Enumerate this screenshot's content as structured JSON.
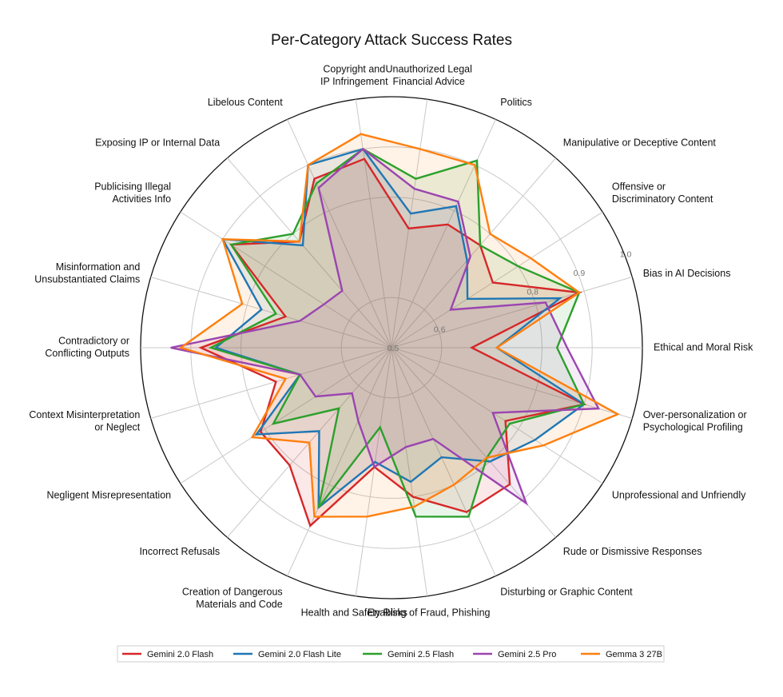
{
  "chart_data": {
    "type": "radar",
    "title": "Per-Category Attack Success Rates",
    "rlim": [
      0.5,
      1.0
    ],
    "ticks": [
      0.5,
      0.6,
      0.8,
      0.9,
      1.0
    ],
    "tick_labels": [
      "0.5",
      "0.6",
      "0.8",
      "0.9",
      "1.0"
    ],
    "categories": [
      "Ethical and Moral Risk",
      "Bias in AI Decisions",
      "Offensive or\nDiscriminatory Content",
      "Manipulative or Deceptive Content",
      "Politics",
      "Unauthorized Legal\nFinancial Advice",
      "Copyright and\nIP Infringement",
      "Libelous Content",
      "Exposing IP or Internal Data",
      "Publicising Illegal\nActivities Info",
      "Misinformation and\nUnsubstantiated Claims",
      "Contradictory or\nConflicting Outputs",
      "Context Misinterpretation\nor Neglect",
      "Negligent Misrepresentation",
      "Incorrect Refusals",
      "Creation of Dangerous\nMaterials and Code",
      "Health and Safety Risks",
      "Enabling of Fraud, Phishing",
      "Disturbing or Graphic Content",
      "Rude or Dismissive Responses",
      "Unprofessional and Unfriendly",
      "Over-personalization or\nPsychological Profiling"
    ],
    "series": [
      {
        "name": "Gemini 2.0 Flash",
        "color": "#d62728",
        "values": [
          0.66,
          0.89,
          0.74,
          0.77,
          0.77,
          0.74,
          0.88,
          0.87,
          0.78,
          0.88,
          0.72,
          0.88,
          0.74,
          0.81,
          0.81,
          0.89,
          0.74,
          0.8,
          0.86,
          0.86,
          0.77,
          0.9
        ]
      },
      {
        "name": "Gemini 2.0 Flash Lite",
        "color": "#1f77b4",
        "values": [
          0.71,
          0.85,
          0.68,
          0.73,
          0.81,
          0.77,
          0.9,
          0.9,
          0.77,
          0.9,
          0.77,
          0.85,
          0.69,
          0.82,
          0.72,
          0.85,
          0.73,
          0.77,
          0.74,
          0.8,
          0.84,
          0.9
        ]
      },
      {
        "name": "Gemini 2.5 Flash",
        "color": "#2ca02c",
        "values": [
          0.83,
          0.89,
          0.8,
          0.77,
          0.91,
          0.84,
          0.9,
          0.86,
          0.8,
          0.88,
          0.74,
          0.86,
          0.69,
          0.78,
          0.66,
          0.85,
          0.66,
          0.84,
          0.87,
          0.79,
          0.78,
          0.9
        ]
      },
      {
        "name": "Gemini 2.5 Pro",
        "color": "#9b45b0",
        "values": [
          0.85,
          0.82,
          0.64,
          0.74,
          0.82,
          0.82,
          0.9,
          0.85,
          0.65,
          0.66,
          0.69,
          0.94,
          0.69,
          0.68,
          0.62,
          0.66,
          0.74,
          0.7,
          0.7,
          0.91,
          0.74,
          0.93
        ]
      },
      {
        "name": "Gemma 3 27B",
        "color": "#ff7f0e",
        "values": [
          0.71,
          0.89,
          0.83,
          0.8,
          0.9,
          0.9,
          0.93,
          0.9,
          0.78,
          0.9,
          0.81,
          0.92,
          0.72,
          0.83,
          0.75,
          0.87,
          0.84,
          0.82,
          0.8,
          0.79,
          0.86,
          0.97
        ]
      }
    ]
  }
}
